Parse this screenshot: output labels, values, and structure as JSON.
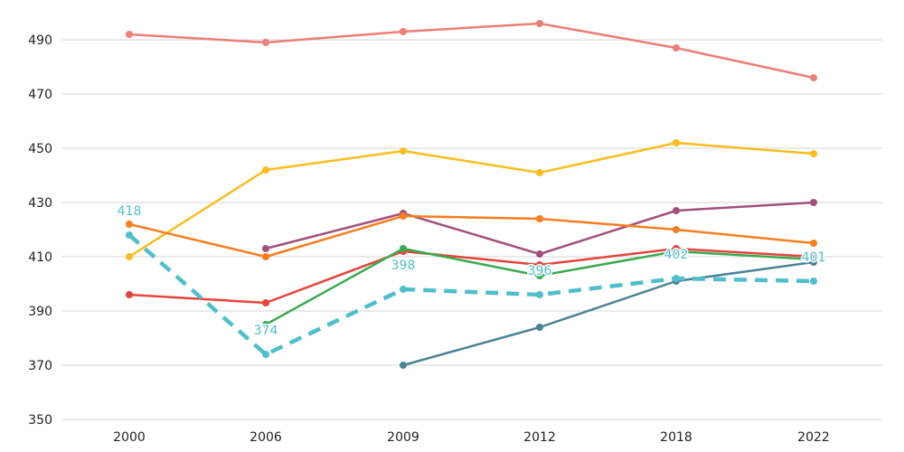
{
  "chart_data": {
    "type": "line",
    "title": "",
    "xlabel": "",
    "ylabel": "",
    "x": [
      "2000",
      "2006",
      "2009",
      "2012",
      "2018",
      "2022"
    ],
    "ylim": [
      350,
      500
    ],
    "yticks": [
      350,
      370,
      390,
      410,
      430,
      450,
      470,
      490
    ],
    "grid": "horizontal",
    "legend": "none",
    "series": [
      {
        "color": "#ec7f77",
        "style": "solid",
        "values": [
          492,
          489,
          493,
          496,
          487,
          476
        ]
      },
      {
        "color": "#fbbd1e",
        "style": "solid",
        "values": [
          410,
          442,
          449,
          441,
          452,
          448
        ]
      },
      {
        "color": "#a2517d",
        "style": "solid",
        "values": [
          null,
          413,
          426,
          411,
          427,
          430
        ]
      },
      {
        "color": "#f77e1f",
        "style": "solid",
        "values": [
          422,
          410,
          425,
          424,
          420,
          415
        ]
      },
      {
        "color": "#e5453b",
        "style": "solid",
        "values": [
          396,
          393,
          412,
          407,
          413,
          410
        ]
      },
      {
        "color": "#3bab4f",
        "style": "solid",
        "values": [
          null,
          385,
          413,
          403,
          412,
          409
        ]
      },
      {
        "color": "#4a8396",
        "style": "solid",
        "values": [
          null,
          null,
          370,
          384,
          401,
          408
        ]
      },
      {
        "color": "#4fbfcc",
        "style": "dashed",
        "values": [
          418,
          374,
          398,
          396,
          402,
          401
        ],
        "labels": [
          "418",
          "374",
          "398",
          "396",
          "402",
          "401"
        ]
      }
    ]
  }
}
